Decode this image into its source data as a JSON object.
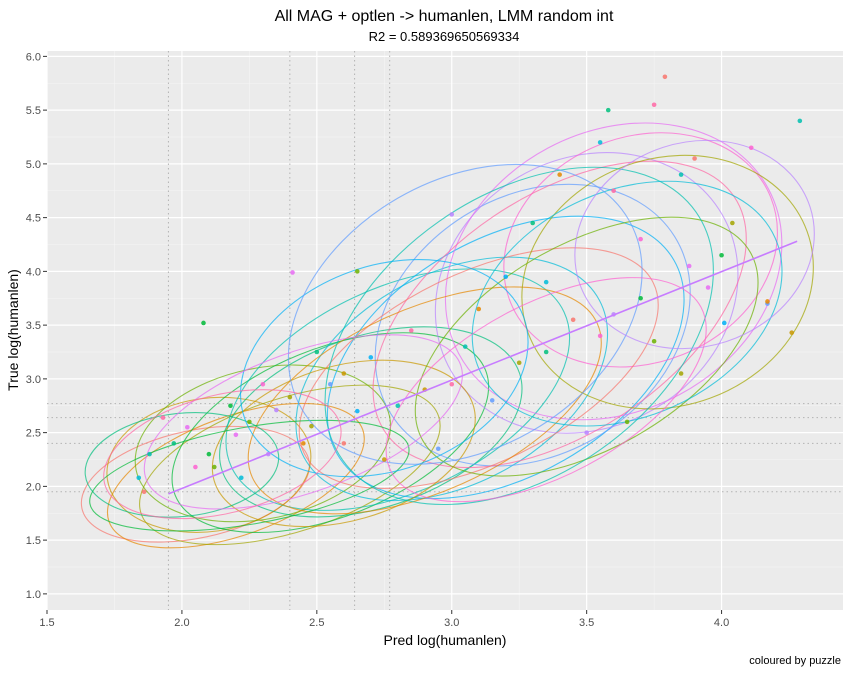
{
  "chart_data": {
    "type": "scatter",
    "title": "All MAG + optlen -> humanlen, LMM random int",
    "subtitle": "R2 = 0.589369650569334",
    "xlabel": "Pred log(humanlen)",
    "ylabel": "True log(humanlen)",
    "caption": "coloured by puzzle",
    "xlim": [
      1.5,
      4.45
    ],
    "ylim": [
      0.85,
      6.05
    ],
    "x_ticks": [
      "1.5",
      "2.0",
      "2.5",
      "3.0",
      "3.5",
      "4.0"
    ],
    "y_ticks": [
      "1.0",
      "1.5",
      "2.0",
      "2.5",
      "3.0",
      "3.5",
      "4.0",
      "4.5",
      "5.0",
      "5.5",
      "6.0"
    ],
    "grid": true,
    "legend": "none",
    "reference_lines_x": [
      1.95,
      2.4,
      2.64,
      2.77
    ],
    "reference_lines_y": [
      1.95,
      2.4,
      2.64,
      2.77
    ],
    "fit_line": {
      "x": [
        1.95,
        4.28
      ],
      "y": [
        1.93,
        4.28
      ]
    },
    "marker_colors": [
      "#F8766D",
      "#E58700",
      "#C99800",
      "#A3A500",
      "#6BB100",
      "#00BA38",
      "#00BF7D",
      "#00C0AF",
      "#00BCD8",
      "#00B0F6",
      "#619CFF",
      "#B983FF",
      "#E76BF3",
      "#FD61D1",
      "#FF67A4"
    ],
    "points": [
      [
        3.79,
        5.81
      ],
      [
        4.29,
        5.4
      ],
      [
        3.75,
        5.55
      ],
      [
        3.58,
        5.5
      ],
      [
        4.11,
        5.15
      ],
      [
        2.08,
        3.52
      ],
      [
        2.41,
        3.99
      ],
      [
        2.65,
        4.0
      ],
      [
        3.0,
        4.53
      ],
      [
        4.04,
        4.45
      ],
      [
        4.17,
        3.7
      ],
      [
        4.26,
        3.43
      ],
      [
        4.01,
        3.52
      ],
      [
        4.17,
        3.72
      ],
      [
        1.84,
        2.08
      ],
      [
        1.86,
        1.95
      ],
      [
        1.88,
        2.3
      ],
      [
        1.93,
        2.64
      ],
      [
        1.97,
        2.4
      ],
      [
        2.05,
        2.18
      ],
      [
        2.1,
        2.3
      ],
      [
        2.2,
        2.48
      ],
      [
        2.25,
        2.6
      ],
      [
        2.35,
        2.71
      ],
      [
        2.4,
        2.83
      ],
      [
        2.55,
        2.95
      ],
      [
        2.6,
        3.05
      ],
      [
        2.7,
        3.2
      ],
      [
        3.4,
        4.9
      ],
      [
        3.55,
        5.2
      ],
      [
        3.9,
        5.05
      ],
      [
        3.85,
        4.9
      ],
      [
        3.6,
        4.75
      ],
      [
        3.3,
        4.45
      ],
      [
        3.7,
        4.3
      ],
      [
        4.0,
        4.15
      ],
      [
        3.95,
        3.85
      ],
      [
        3.65,
        2.6
      ],
      [
        3.5,
        2.5
      ],
      [
        3.85,
        3.05
      ],
      [
        2.95,
        2.35
      ],
      [
        2.75,
        2.25
      ],
      [
        3.2,
        3.95
      ],
      [
        3.1,
        3.65
      ],
      [
        3.35,
        3.9
      ],
      [
        3.45,
        3.55
      ],
      [
        3.05,
        3.3
      ],
      [
        2.85,
        3.45
      ],
      [
        2.5,
        3.25
      ],
      [
        2.3,
        2.95
      ],
      [
        2.18,
        2.75
      ],
      [
        2.02,
        2.55
      ],
      [
        3.75,
        3.35
      ],
      [
        3.6,
        3.6
      ],
      [
        3.25,
        3.15
      ],
      [
        3.15,
        2.8
      ],
      [
        2.9,
        2.9
      ],
      [
        2.65,
        2.7
      ],
      [
        2.45,
        2.4
      ],
      [
        2.22,
        2.08
      ],
      [
        2.6,
        2.4
      ],
      [
        2.8,
        2.75
      ],
      [
        3.0,
        2.95
      ],
      [
        3.35,
        3.25
      ],
      [
        3.55,
        3.4
      ],
      [
        3.7,
        3.75
      ],
      [
        3.88,
        4.05
      ],
      [
        2.12,
        2.18
      ],
      [
        2.32,
        2.3
      ],
      [
        2.48,
        2.56
      ]
    ],
    "ellipses": [
      [
        2.05,
        2.02,
        0.43,
        0.5,
        -12
      ],
      [
        2.2,
        2.1,
        0.5,
        0.55,
        -20
      ],
      [
        2.1,
        2.2,
        0.38,
        0.62,
        -8
      ],
      [
        2.4,
        2.2,
        0.58,
        0.62,
        -18
      ],
      [
        2.3,
        2.4,
        0.48,
        0.7,
        -12
      ],
      [
        2.55,
        2.5,
        0.62,
        0.78,
        -22
      ],
      [
        2.7,
        2.6,
        0.58,
        0.8,
        -18
      ],
      [
        2.8,
        2.9,
        0.68,
        0.95,
        -25
      ],
      [
        3.0,
        3.0,
        0.62,
        0.98,
        -28
      ],
      [
        3.2,
        3.2,
        0.72,
        1.1,
        -30
      ],
      [
        3.3,
        3.5,
        0.62,
        1.2,
        -32
      ],
      [
        3.5,
        3.8,
        0.58,
        1.25,
        -30
      ],
      [
        3.6,
        4.0,
        0.65,
        1.3,
        -28
      ],
      [
        3.7,
        4.2,
        0.52,
        1.05,
        -22
      ],
      [
        3.4,
        3.6,
        0.78,
        1.1,
        -34
      ],
      [
        3.1,
        3.1,
        0.72,
        0.88,
        -26
      ],
      [
        2.9,
        2.8,
        0.7,
        0.85,
        -24
      ],
      [
        2.6,
        2.4,
        0.5,
        0.72,
        -16
      ],
      [
        3.8,
        3.9,
        0.55,
        1.15,
        -20
      ],
      [
        3.5,
        3.3,
        0.7,
        0.95,
        -30
      ],
      [
        2.25,
        2.1,
        0.6,
        0.45,
        -10
      ],
      [
        2.0,
        2.2,
        0.36,
        0.48,
        -6
      ],
      [
        3.25,
        3.4,
        0.8,
        1.3,
        -35
      ],
      [
        3.65,
        3.7,
        0.6,
        1.05,
        -24
      ],
      [
        2.75,
        3.1,
        0.55,
        0.95,
        -20
      ],
      [
        3.05,
        3.6,
        0.7,
        1.25,
        -30
      ],
      [
        3.9,
        4.25,
        0.45,
        0.95,
        -18
      ],
      [
        2.45,
        2.6,
        0.62,
        0.65,
        -20
      ],
      [
        3.35,
        2.9,
        0.65,
        0.8,
        -28
      ],
      [
        2.15,
        2.3,
        0.45,
        0.55,
        -14
      ]
    ]
  }
}
